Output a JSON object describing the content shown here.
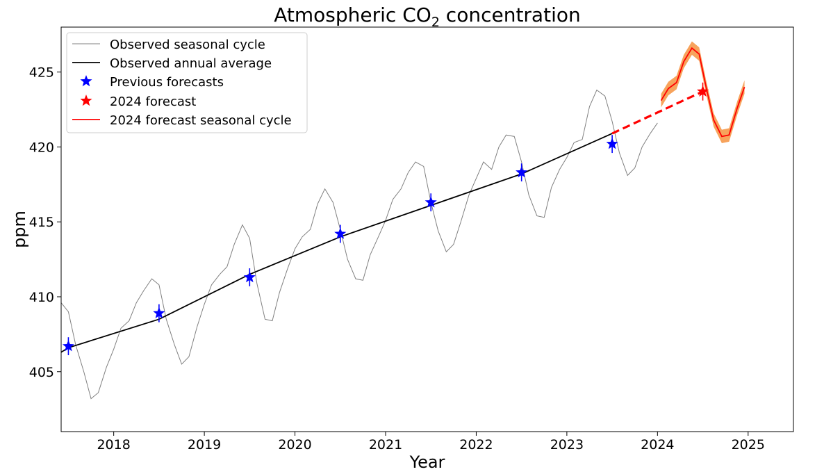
{
  "chart_data": {
    "type": "line",
    "title_main": "Atmospheric CO",
    "title_sub": "2",
    "title_rest": " concentration",
    "xlabel": "Year",
    "ylabel": "ppm",
    "xlim": [
      2017.42,
      2025.5
    ],
    "ylim": [
      401.0,
      428.0
    ],
    "xticks": [
      2018,
      2019,
      2020,
      2021,
      2022,
      2023,
      2024,
      2025
    ],
    "yticks": [
      405,
      410,
      415,
      420,
      425
    ],
    "grid": false,
    "legend_position": "top-left",
    "colors": {
      "seasonal": "#808080",
      "annual": "#000000",
      "previous": "#0000ff",
      "forecast": "#ff0000",
      "band": "#f7a35c"
    },
    "series": [
      {
        "name": "Observed seasonal cycle",
        "x": [
          2017.42,
          2017.5,
          2017.58,
          2017.67,
          2017.75,
          2017.83,
          2017.92,
          2018.0,
          2018.08,
          2018.17,
          2018.25,
          2018.33,
          2018.42,
          2018.5,
          2018.58,
          2018.67,
          2018.75,
          2018.83,
          2018.92,
          2019.0,
          2019.08,
          2019.17,
          2019.25,
          2019.33,
          2019.42,
          2019.5,
          2019.58,
          2019.67,
          2019.75,
          2019.83,
          2019.92,
          2020.0,
          2020.08,
          2020.17,
          2020.25,
          2020.33,
          2020.42,
          2020.5,
          2020.58,
          2020.67,
          2020.75,
          2020.83,
          2020.92,
          2021.0,
          2021.08,
          2021.17,
          2021.25,
          2021.33,
          2021.42,
          2021.5,
          2021.58,
          2021.67,
          2021.75,
          2021.83,
          2021.92,
          2022.0,
          2022.08,
          2022.17,
          2022.25,
          2022.33,
          2022.42,
          2022.5,
          2022.58,
          2022.67,
          2022.75,
          2022.83,
          2022.92,
          2023.0,
          2023.08,
          2023.17,
          2023.25,
          2023.33,
          2023.42,
          2023.5,
          2023.58,
          2023.67,
          2023.75,
          2023.83,
          2023.92,
          2024.0
        ],
        "values": [
          409.6,
          409.0,
          406.8,
          405.0,
          403.2,
          403.6,
          405.3,
          406.5,
          407.9,
          408.4,
          409.6,
          410.4,
          411.2,
          410.8,
          408.5,
          406.8,
          405.5,
          406.0,
          408.0,
          409.5,
          410.8,
          411.5,
          412.0,
          413.5,
          414.8,
          413.9,
          410.9,
          408.5,
          408.4,
          410.3,
          411.9,
          413.2,
          414.0,
          414.5,
          416.2,
          417.2,
          416.3,
          414.5,
          412.5,
          411.2,
          411.1,
          412.8,
          414.0,
          415.1,
          416.5,
          417.2,
          418.3,
          419.0,
          418.7,
          416.3,
          414.4,
          413.0,
          413.5,
          415.0,
          416.8,
          417.9,
          419.0,
          418.5,
          420.0,
          420.8,
          420.7,
          419.0,
          416.8,
          415.4,
          415.3,
          417.3,
          418.5,
          419.3,
          420.3,
          420.5,
          422.7,
          423.8,
          423.4,
          421.7,
          419.6,
          418.1,
          418.6,
          420.0,
          420.9,
          421.6
        ]
      },
      {
        "name": "Observed annual average",
        "x": [
          2017.42,
          2017.5,
          2018.5,
          2019.5,
          2020.5,
          2021.5,
          2022.5,
          2023.5
        ],
        "values": [
          406.3,
          406.6,
          408.5,
          411.5,
          414.0,
          416.1,
          418.2,
          420.9
        ]
      },
      {
        "name": "Previous forecasts",
        "x": [
          2017.5,
          2018.5,
          2019.5,
          2020.5,
          2021.5,
          2022.5,
          2023.5
        ],
        "values": [
          406.7,
          408.9,
          411.3,
          414.2,
          416.3,
          418.3,
          420.2
        ],
        "err": [
          0.6,
          0.6,
          0.6,
          0.6,
          0.6,
          0.6,
          0.6
        ]
      },
      {
        "name": "2024 forecast",
        "x": [
          2024.5
        ],
        "values": [
          423.7
        ],
        "err": [
          0.6
        ]
      },
      {
        "name": "2024 forecast seasonal cycle",
        "x": [
          2024.04,
          2024.12,
          2024.21,
          2024.29,
          2024.38,
          2024.46,
          2024.54,
          2024.62,
          2024.71,
          2024.79,
          2024.88,
          2024.96
        ],
        "values": [
          423.1,
          423.9,
          424.3,
          425.7,
          426.6,
          426.2,
          423.9,
          421.8,
          420.7,
          420.8,
          422.6,
          424.0
        ],
        "band_halfwidth": 0.45
      }
    ],
    "trend_extension": {
      "x": [
        2023.5,
        2024.5
      ],
      "values": [
        420.9,
        423.7
      ],
      "style": "dashed"
    }
  }
}
